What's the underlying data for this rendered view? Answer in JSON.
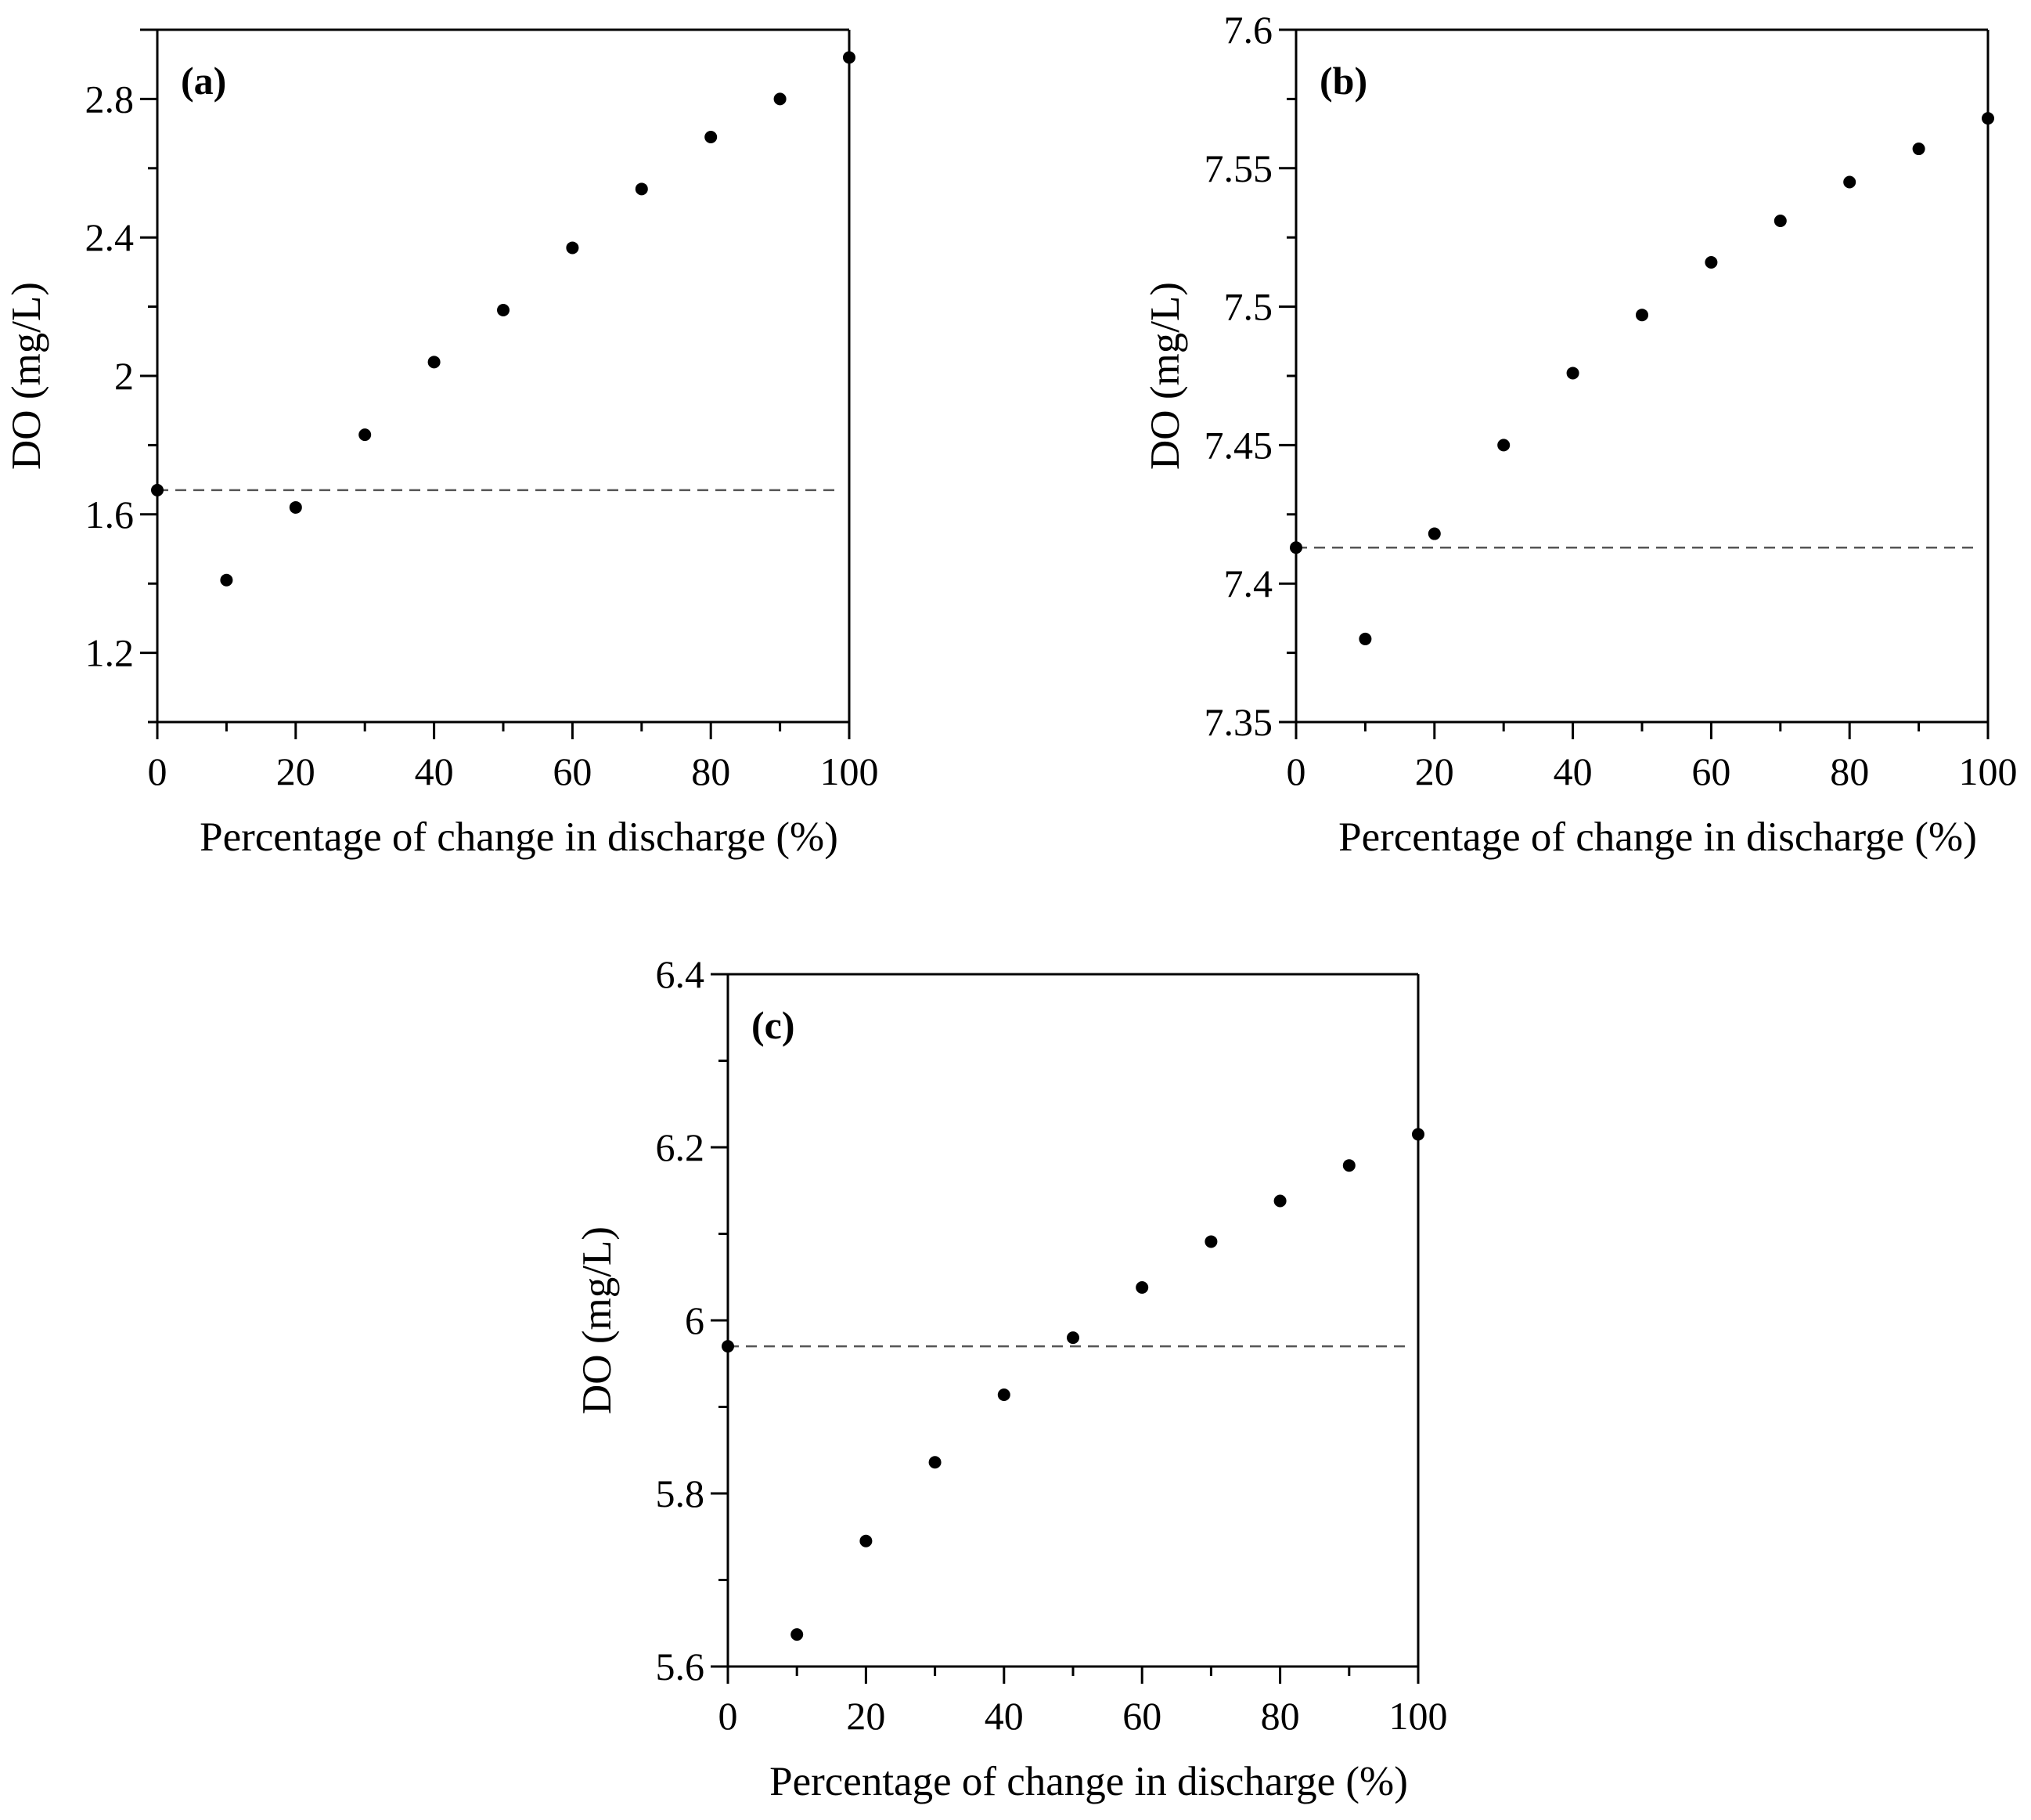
{
  "chart_data": [
    {
      "type": "scatter",
      "panel": "(a)",
      "xlabel": "Percentage of change in discharge (%)",
      "ylabel": "DO (mg/L)",
      "xlim": [
        0,
        100
      ],
      "ylim": [
        1.0,
        3.0
      ],
      "xticks": [
        0,
        20,
        40,
        60,
        80,
        100
      ],
      "yticks": [
        1.2,
        1.6,
        2.0,
        2.4,
        2.8
      ],
      "ytick_labels": [
        "1.2",
        "1.6",
        "2",
        "2.4",
        "2.8"
      ],
      "x": [
        0,
        10,
        20,
        30,
        40,
        50,
        60,
        70,
        80,
        90,
        100
      ],
      "y": [
        1.67,
        1.41,
        1.62,
        1.83,
        2.04,
        2.19,
        2.37,
        2.54,
        2.69,
        2.8,
        2.92
      ],
      "reference_line": 1.67
    },
    {
      "type": "scatter",
      "panel": "(b)",
      "xlabel": "Percentage of change in discharge (%)",
      "ylabel": "DO (mg/L)",
      "xlim": [
        0,
        100
      ],
      "ylim": [
        7.35,
        7.6
      ],
      "xticks": [
        0,
        20,
        40,
        60,
        80,
        100
      ],
      "yticks": [
        7.35,
        7.4,
        7.45,
        7.5,
        7.55,
        7.6
      ],
      "ytick_labels": [
        "7.35",
        "7.4",
        "7.45",
        "7.5",
        "7.55",
        "7.6"
      ],
      "x": [
        0,
        10,
        20,
        30,
        40,
        50,
        60,
        70,
        80,
        90,
        100
      ],
      "y": [
        7.413,
        7.38,
        7.418,
        7.45,
        7.476,
        7.497,
        7.516,
        7.531,
        7.545,
        7.557,
        7.568
      ],
      "reference_line": 7.413
    },
    {
      "type": "scatter",
      "panel": "(c)",
      "xlabel": "Percentage of change in discharge (%)",
      "ylabel": "DO (mg/L)",
      "xlim": [
        0,
        100
      ],
      "ylim": [
        5.6,
        6.4
      ],
      "xticks": [
        0,
        20,
        40,
        60,
        80,
        100
      ],
      "yticks": [
        5.6,
        5.8,
        6.0,
        6.2,
        6.4
      ],
      "ytick_labels": [
        "5.6",
        "5.8",
        "6",
        "6.2",
        "6.4"
      ],
      "x": [
        0,
        10,
        20,
        30,
        40,
        50,
        60,
        70,
        80,
        90,
        100
      ],
      "y": [
        5.97,
        5.637,
        5.745,
        5.836,
        5.914,
        5.98,
        6.038,
        6.091,
        6.138,
        6.179,
        6.215
      ],
      "reference_line": 5.97
    }
  ]
}
